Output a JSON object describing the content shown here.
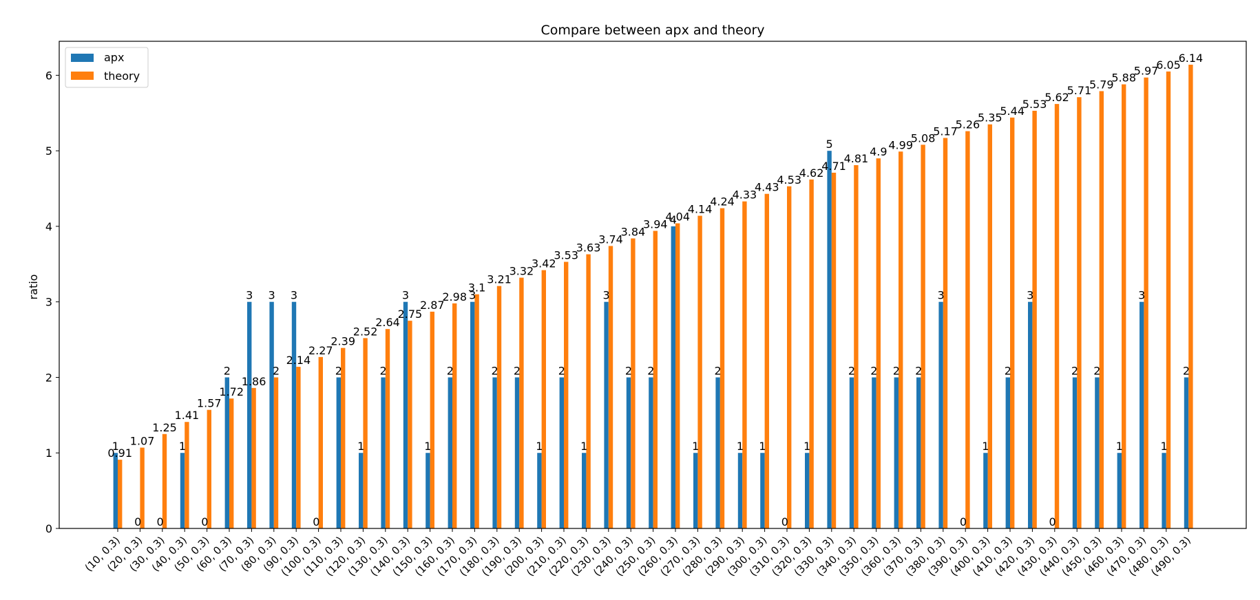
{
  "chart_data": {
    "type": "bar",
    "title": "Compare between apx and theory",
    "xlabel": "",
    "ylabel": "ratio",
    "ylim": [
      0,
      6.45
    ],
    "yticks": [
      0,
      1,
      2,
      3,
      4,
      5,
      6
    ],
    "grid": false,
    "legend_position": "top-left",
    "categories": [
      "(10, 0.3)",
      "(20, 0.3)",
      "(30, 0.3)",
      "(40, 0.3)",
      "(50, 0.3)",
      "(60, 0.3)",
      "(70, 0.3)",
      "(80, 0.3)",
      "(90, 0.3)",
      "(100, 0.3)",
      "(110, 0.3)",
      "(120, 0.3)",
      "(130, 0.3)",
      "(140, 0.3)",
      "(150, 0.3)",
      "(160, 0.3)",
      "(170, 0.3)",
      "(180, 0.3)",
      "(190, 0.3)",
      "(200, 0.3)",
      "(210, 0.3)",
      "(220, 0.3)",
      "(230, 0.3)",
      "(240, 0.3)",
      "(250, 0.3)",
      "(260, 0.3)",
      "(270, 0.3)",
      "(280, 0.3)",
      "(290, 0.3)",
      "(300, 0.3)",
      "(310, 0.3)",
      "(320, 0.3)",
      "(330, 0.3)",
      "(340, 0.3)",
      "(350, 0.3)",
      "(360, 0.3)",
      "(370, 0.3)",
      "(380, 0.3)",
      "(390, 0.3)",
      "(400, 0.3)",
      "(410, 0.3)",
      "(420, 0.3)",
      "(430, 0.3)",
      "(440, 0.3)",
      "(450, 0.3)",
      "(460, 0.3)",
      "(470, 0.3)",
      "(480, 0.3)",
      "(490, 0.3)"
    ],
    "series": [
      {
        "name": "apx",
        "color": "#1f77b4",
        "values": [
          1,
          0,
          0,
          1,
          0,
          2,
          3,
          3,
          3,
          0,
          2,
          1,
          2,
          3,
          1,
          2,
          3,
          2,
          2,
          1,
          2,
          1,
          3,
          2,
          2,
          4,
          1,
          2,
          1,
          1,
          0,
          1,
          5,
          2,
          2,
          2,
          2,
          3,
          0,
          1,
          2,
          3,
          0,
          2,
          2,
          1,
          3,
          1,
          2
        ],
        "labels": [
          "1",
          "0",
          "0",
          "1",
          "0",
          "2",
          "3",
          "3",
          "3",
          "0",
          "2",
          "1",
          "2",
          "3",
          "1",
          "2",
          "3",
          "2",
          "2",
          "1",
          "2",
          "1",
          "3",
          "2",
          "2",
          "4",
          "1",
          "2",
          "1",
          "1",
          "0",
          "1",
          "5",
          "2",
          "2",
          "2",
          "2",
          "3",
          "0",
          "1",
          "2",
          "3",
          "0",
          "2",
          "2",
          "1",
          "3",
          "1",
          "2"
        ]
      },
      {
        "name": "theory",
        "color": "#ff7f0e",
        "values": [
          0.91,
          1.07,
          1.25,
          1.41,
          1.57,
          1.72,
          1.86,
          2,
          2.14,
          2.27,
          2.39,
          2.52,
          2.64,
          2.75,
          2.87,
          2.98,
          3.1,
          3.21,
          3.32,
          3.42,
          3.53,
          3.63,
          3.74,
          3.84,
          3.94,
          4.04,
          4.14,
          4.24,
          4.33,
          4.43,
          4.53,
          4.62,
          4.71,
          4.81,
          4.9,
          4.99,
          5.08,
          5.17,
          5.26,
          5.35,
          5.44,
          5.53,
          5.62,
          5.71,
          5.79,
          5.88,
          5.97,
          6.05,
          6.14
        ],
        "labels": [
          "0.91",
          "1.07",
          "1.25",
          "1.41",
          "1.57",
          "1.72",
          "1.86",
          "2",
          "2.14",
          "2.27",
          "2.39",
          "2.52",
          "2.64",
          "2.75",
          "2.87",
          "2.98",
          "3.1",
          "3.21",
          "3.32",
          "3.42",
          "3.53",
          "3.63",
          "3.74",
          "3.84",
          "3.94",
          "4.04",
          "4.14",
          "4.24",
          "4.33",
          "4.43",
          "4.53",
          "4.62",
          "4.71",
          "4.81",
          "4.9",
          "4.99",
          "5.08",
          "5.17",
          "5.26",
          "5.35",
          "5.44",
          "5.53",
          "5.62",
          "5.71",
          "5.79",
          "5.88",
          "5.97",
          "6.05",
          "6.14"
        ]
      }
    ]
  }
}
